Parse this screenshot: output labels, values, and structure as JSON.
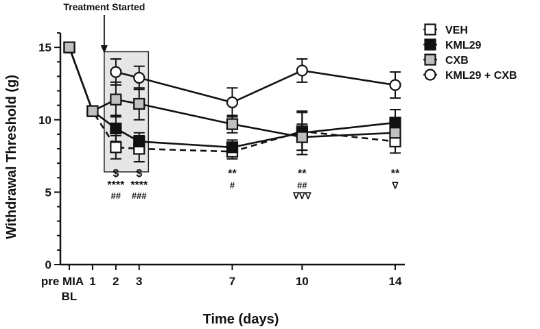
{
  "chart_data": {
    "type": "line",
    "title": "",
    "xlabel": "Time (days)",
    "ylabel": "Withdrawal Threshold (g)",
    "ylim": [
      0,
      16
    ],
    "yticks": [
      0,
      5,
      10,
      15
    ],
    "x_categories": [
      {
        "label": "pre MIA",
        "label2": "BL"
      },
      {
        "label": "1",
        "label2": ""
      },
      {
        "label": "2",
        "label2": ""
      },
      {
        "label": "3",
        "label2": ""
      },
      {
        "label": "7",
        "label2": ""
      },
      {
        "label": "10",
        "label2": ""
      },
      {
        "label": "14",
        "label2": ""
      }
    ],
    "x_positions": [
      0,
      1,
      2,
      3,
      7,
      10,
      14
    ],
    "treatment_annotation": {
      "text": "Treatment Started",
      "at_x": 1.5
    },
    "shaded_region": {
      "x_from": 1.5,
      "x_to": 3.4,
      "y_from": 6.4,
      "y_to": 14.7
    },
    "series": [
      {
        "name": "VEH",
        "marker": "square",
        "fill": "#ffffff",
        "dashed": true,
        "x": [
          0,
          1,
          2,
          3,
          7,
          10,
          14
        ],
        "values": [
          15.0,
          10.6,
          8.1,
          8.0,
          7.8,
          9.2,
          8.5
        ],
        "errors": [
          0,
          0,
          0.8,
          0.9,
          0.5,
          1.3,
          0.8
        ]
      },
      {
        "name": "KML29",
        "marker": "square",
        "fill": "#111111",
        "dashed": false,
        "x": [
          0,
          1,
          2,
          3,
          7,
          10,
          14
        ],
        "values": [
          15.0,
          10.6,
          9.4,
          8.5,
          8.1,
          9.1,
          9.8
        ],
        "errors": [
          0,
          0,
          0.9,
          0.6,
          0.5,
          1.5,
          0.9
        ]
      },
      {
        "name": "CXB",
        "marker": "square",
        "fill": "#c0c0c0",
        "dashed": false,
        "x": [
          0,
          1,
          2,
          3,
          7,
          10,
          14
        ],
        "values": [
          15.0,
          10.6,
          11.4,
          11.1,
          9.7,
          8.8,
          9.1
        ],
        "errors": [
          0,
          0,
          1.2,
          1.1,
          0.6,
          0.9,
          0.7
        ]
      },
      {
        "name": "KML29 + CXB",
        "marker": "circle",
        "fill": "#ffffff",
        "dashed": false,
        "x": [
          2,
          3,
          7,
          10,
          14
        ],
        "values": [
          13.3,
          12.9,
          11.2,
          13.4,
          12.4
        ],
        "errors": [
          0.9,
          0.8,
          1.0,
          0.8,
          0.9
        ]
      }
    ],
    "significance_annotations": [
      {
        "x": 2,
        "lines": [
          "$",
          "****",
          "##"
        ]
      },
      {
        "x": 3,
        "lines": [
          "$",
          "****",
          "###"
        ]
      },
      {
        "x": 7,
        "lines": [
          "**",
          "#"
        ]
      },
      {
        "x": 10,
        "lines": [
          "**",
          "##",
          "∇∇∇"
        ]
      },
      {
        "x": 14,
        "lines": [
          "**",
          "∇"
        ]
      }
    ],
    "legend": {
      "placement": "top-right"
    }
  }
}
